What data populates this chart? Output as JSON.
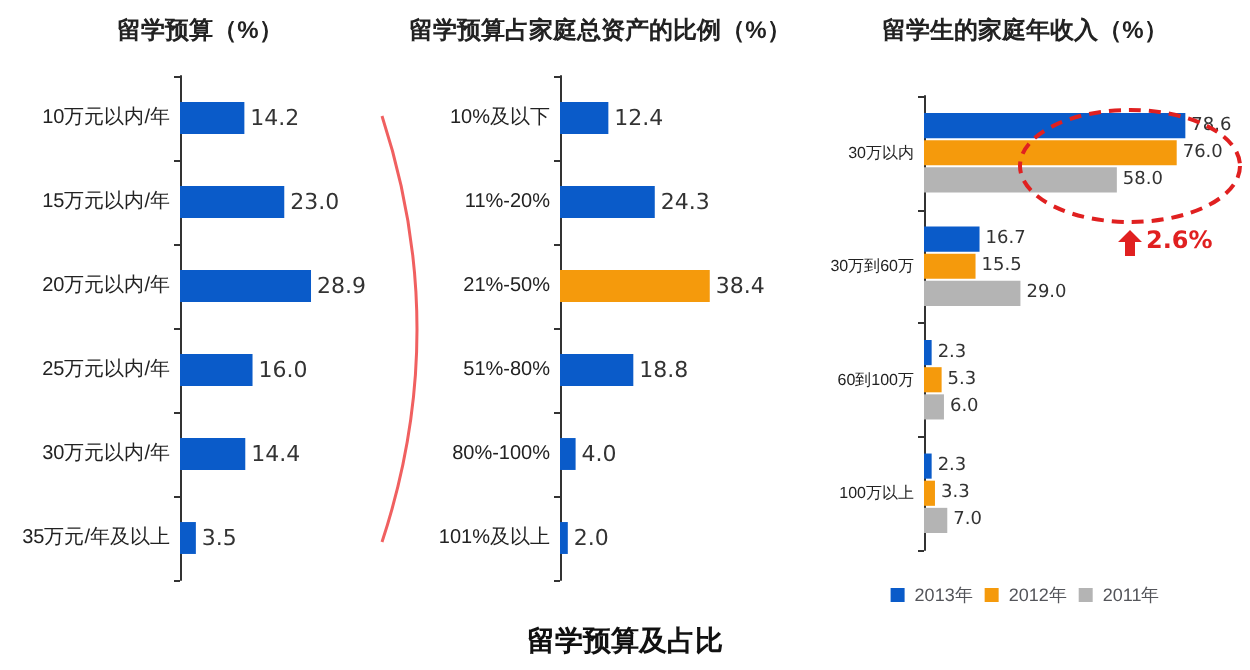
{
  "chart_data": [
    {
      "type": "bar",
      "orientation": "horizontal",
      "title": "留学预算（%）",
      "categories": [
        "10万元以内/年",
        "15万元以内/年",
        "20万元以内/年",
        "25万元以内/年",
        "30万元以内/年",
        "35万元/年及以上"
      ],
      "values": [
        14.2,
        23.0,
        28.9,
        16.0,
        14.4,
        3.5
      ],
      "value_labels": [
        "14.2",
        "23.0",
        "28.9",
        "16.0",
        "14.4",
        "3.5"
      ],
      "color": "#0a5bc9"
    },
    {
      "type": "bar",
      "orientation": "horizontal",
      "title": "留学预算占家庭总资产的比例（%）",
      "categories": [
        "10%及以下",
        "11%-20%",
        "21%-50%",
        "51%-80%",
        "80%-100%",
        "101%及以上"
      ],
      "values": [
        12.4,
        24.3,
        38.4,
        18.8,
        4.0,
        2.0
      ],
      "value_labels": [
        "12.4",
        "24.3",
        "38.4",
        "18.8",
        "4.0",
        "2.0"
      ],
      "colors": [
        "#0a5bc9",
        "#0a5bc9",
        "#f59a0c",
        "#0a5bc9",
        "#0a5bc9",
        "#0a5bc9"
      ],
      "annotations": [
        "留学预算及占比"
      ]
    },
    {
      "type": "bar",
      "orientation": "horizontal",
      "title": "留学生的家庭年收入（%）",
      "categories": [
        "30万以内",
        "30万到60万",
        "60到100万",
        "100万以上"
      ],
      "series": [
        {
          "name": "2013年",
          "color": "#0a5bc9",
          "values": [
            78.6,
            16.7,
            2.3,
            2.3
          ],
          "value_labels": [
            "78.6",
            "16.7",
            "2.3",
            "2.3"
          ]
        },
        {
          "name": "2012年",
          "color": "#f59a0c",
          "values": [
            76.0,
            15.5,
            5.3,
            3.3
          ],
          "value_labels": [
            "76.0",
            "15.5",
            "5.3",
            "3.3"
          ]
        },
        {
          "name": "2011年",
          "color": "#b4b4b4",
          "values": [
            58.0,
            29.0,
            6.0,
            7.0
          ],
          "value_labels": [
            "58.0",
            "29.0",
            "6.0",
            "7.0"
          ]
        }
      ],
      "legend": "bottom",
      "annotations": [
        "2.6%"
      ]
    }
  ]
}
